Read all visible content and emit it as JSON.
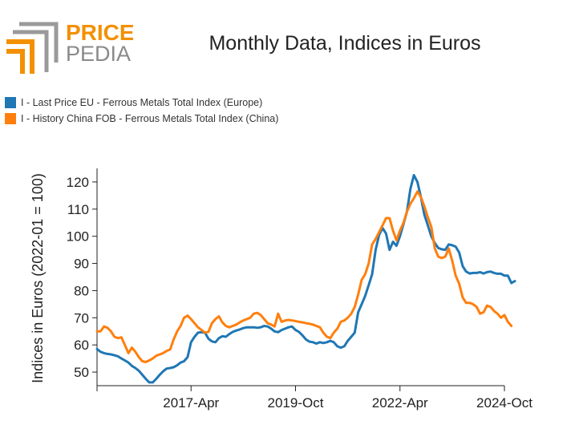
{
  "logo": {
    "text_top": "PRICE",
    "text_bottom": "PEDIA",
    "accent": "#f39000",
    "gray": "#8a8a8a"
  },
  "chart_data": {
    "type": "line",
    "title": "Monthly Data, Indices in Euros",
    "ylabel": "Indices in Euros (2022-01 = 100)",
    "xlabel": "",
    "ylim": [
      45,
      125
    ],
    "yticks": [
      50,
      60,
      70,
      80,
      90,
      100,
      110,
      120
    ],
    "x_range": [
      "2015-01",
      "2024-10"
    ],
    "xticks": [
      {
        "date": "2017-04",
        "label": "2017-Apr"
      },
      {
        "date": "2019-10",
        "label": "2019-Oct"
      },
      {
        "date": "2022-04",
        "label": "2022-Apr"
      },
      {
        "date": "2024-10",
        "label": "2024-Oct"
      }
    ],
    "legend_position": "top-left",
    "grid": false,
    "series": [
      {
        "name": "I - Last Price EU - Ferrous Metals Total Index (Europe)",
        "color": "#1f77b4",
        "start": "2015-01",
        "values": [
          58.5,
          57.5,
          57,
          56.7,
          56.5,
          56.2,
          55.8,
          55,
          54.3,
          53.5,
          52.3,
          51.5,
          50.5,
          49,
          47.5,
          46.2,
          46.2,
          47.5,
          49,
          50.3,
          51.3,
          51.5,
          51.8,
          52.5,
          53.5,
          54,
          55.5,
          61,
          63,
          64.5,
          64.7,
          64.5,
          62.3,
          61.3,
          61,
          62.5,
          63.2,
          63,
          64,
          64.8,
          65.3,
          65.7,
          66.2,
          66.5,
          66.5,
          66.5,
          66.3,
          66.5,
          67,
          66.8,
          66,
          65,
          64.7,
          65.5,
          66,
          66.5,
          66.8,
          65.5,
          64.8,
          63.5,
          62,
          61.2,
          61,
          60.5,
          61,
          60.7,
          61,
          61.5,
          61,
          59.5,
          59,
          59.5,
          61.5,
          63,
          64.5,
          72,
          75,
          78,
          82,
          86,
          95,
          100.5,
          103,
          101,
          95,
          98,
          96.5,
          100,
          104.5,
          109,
          117.5,
          122.5,
          120,
          114.5,
          108,
          104,
          100,
          97.5,
          95.7,
          95.2,
          95,
          97,
          96.7,
          96.2,
          94,
          89,
          87,
          86.3,
          86.5,
          86.5,
          86.8,
          86.3,
          86.8,
          87,
          86.5,
          86.2,
          86.2,
          85.5,
          85.5,
          82.8,
          83.5
        ]
      },
      {
        "name": "I - History China FOB - Ferrous Metals Total Index (China)",
        "color": "#ff7f0e",
        "start": "2015-01",
        "values": [
          65,
          65,
          66.8,
          66.3,
          65,
          63,
          62.5,
          62.8,
          60,
          57,
          59,
          57.5,
          55.5,
          54,
          53.7,
          54.3,
          55,
          56,
          56.5,
          57,
          57.8,
          58.3,
          62,
          65,
          67,
          70,
          70.8,
          69.5,
          68,
          66.5,
          65.5,
          64.5,
          64.8,
          68,
          69.5,
          70.5,
          68.3,
          67,
          66.5,
          67,
          67.5,
          68.3,
          69,
          69.5,
          70,
          71.5,
          71.8,
          71,
          69.5,
          68,
          67.5,
          66.8,
          71.5,
          68.5,
          69,
          69.2,
          69,
          68.8,
          68.5,
          68.3,
          68,
          67.8,
          67.5,
          67,
          66.5,
          64.5,
          63,
          62.5,
          64.5,
          66,
          68.5,
          69,
          70,
          71.5,
          74,
          78.5,
          84,
          86,
          90,
          97,
          99,
          101.5,
          104,
          106.7,
          106.7,
          102,
          98.5,
          102,
          105,
          109,
          112,
          114,
          116.5,
          114.5,
          111,
          107,
          103.5,
          95.5,
          92.5,
          92,
          92.5,
          95.5,
          91,
          85.5,
          82.5,
          77.5,
          75.5,
          75.5,
          75,
          74,
          71.5,
          72,
          74.5,
          74,
          72.5,
          71.5,
          70,
          71,
          68.5,
          67
        ]
      }
    ]
  }
}
